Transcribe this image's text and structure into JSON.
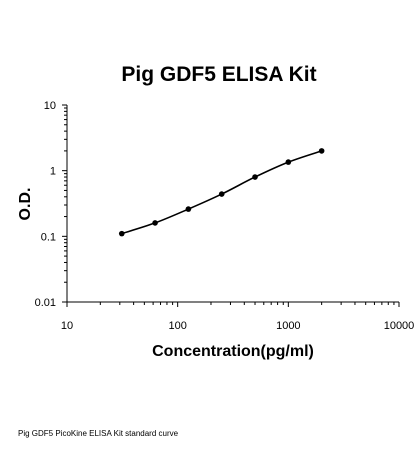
{
  "chart_data": {
    "type": "line",
    "title": "Pig GDF5 ELISA Kit",
    "xlabel": "Concentration(pg/ml)",
    "ylabel": "O.D.",
    "xscale": "log",
    "yscale": "log",
    "xlim": [
      10,
      10000
    ],
    "ylim": [
      0.01,
      10
    ],
    "xticks": [
      "10",
      "100",
      "1000",
      "10000"
    ],
    "yticks": [
      "0.01",
      "0.1",
      "1",
      "10"
    ],
    "grid": false,
    "legend": "none",
    "series": [
      {
        "color": "#000000",
        "x": [
          31.25,
          62.5,
          125,
          250,
          500,
          1000,
          2000
        ],
        "y": [
          0.11,
          0.16,
          0.26,
          0.44,
          0.8,
          1.35,
          2.0
        ]
      }
    ]
  },
  "caption": "Pig GDF5 PicoKine ELISA Kit standard curve"
}
